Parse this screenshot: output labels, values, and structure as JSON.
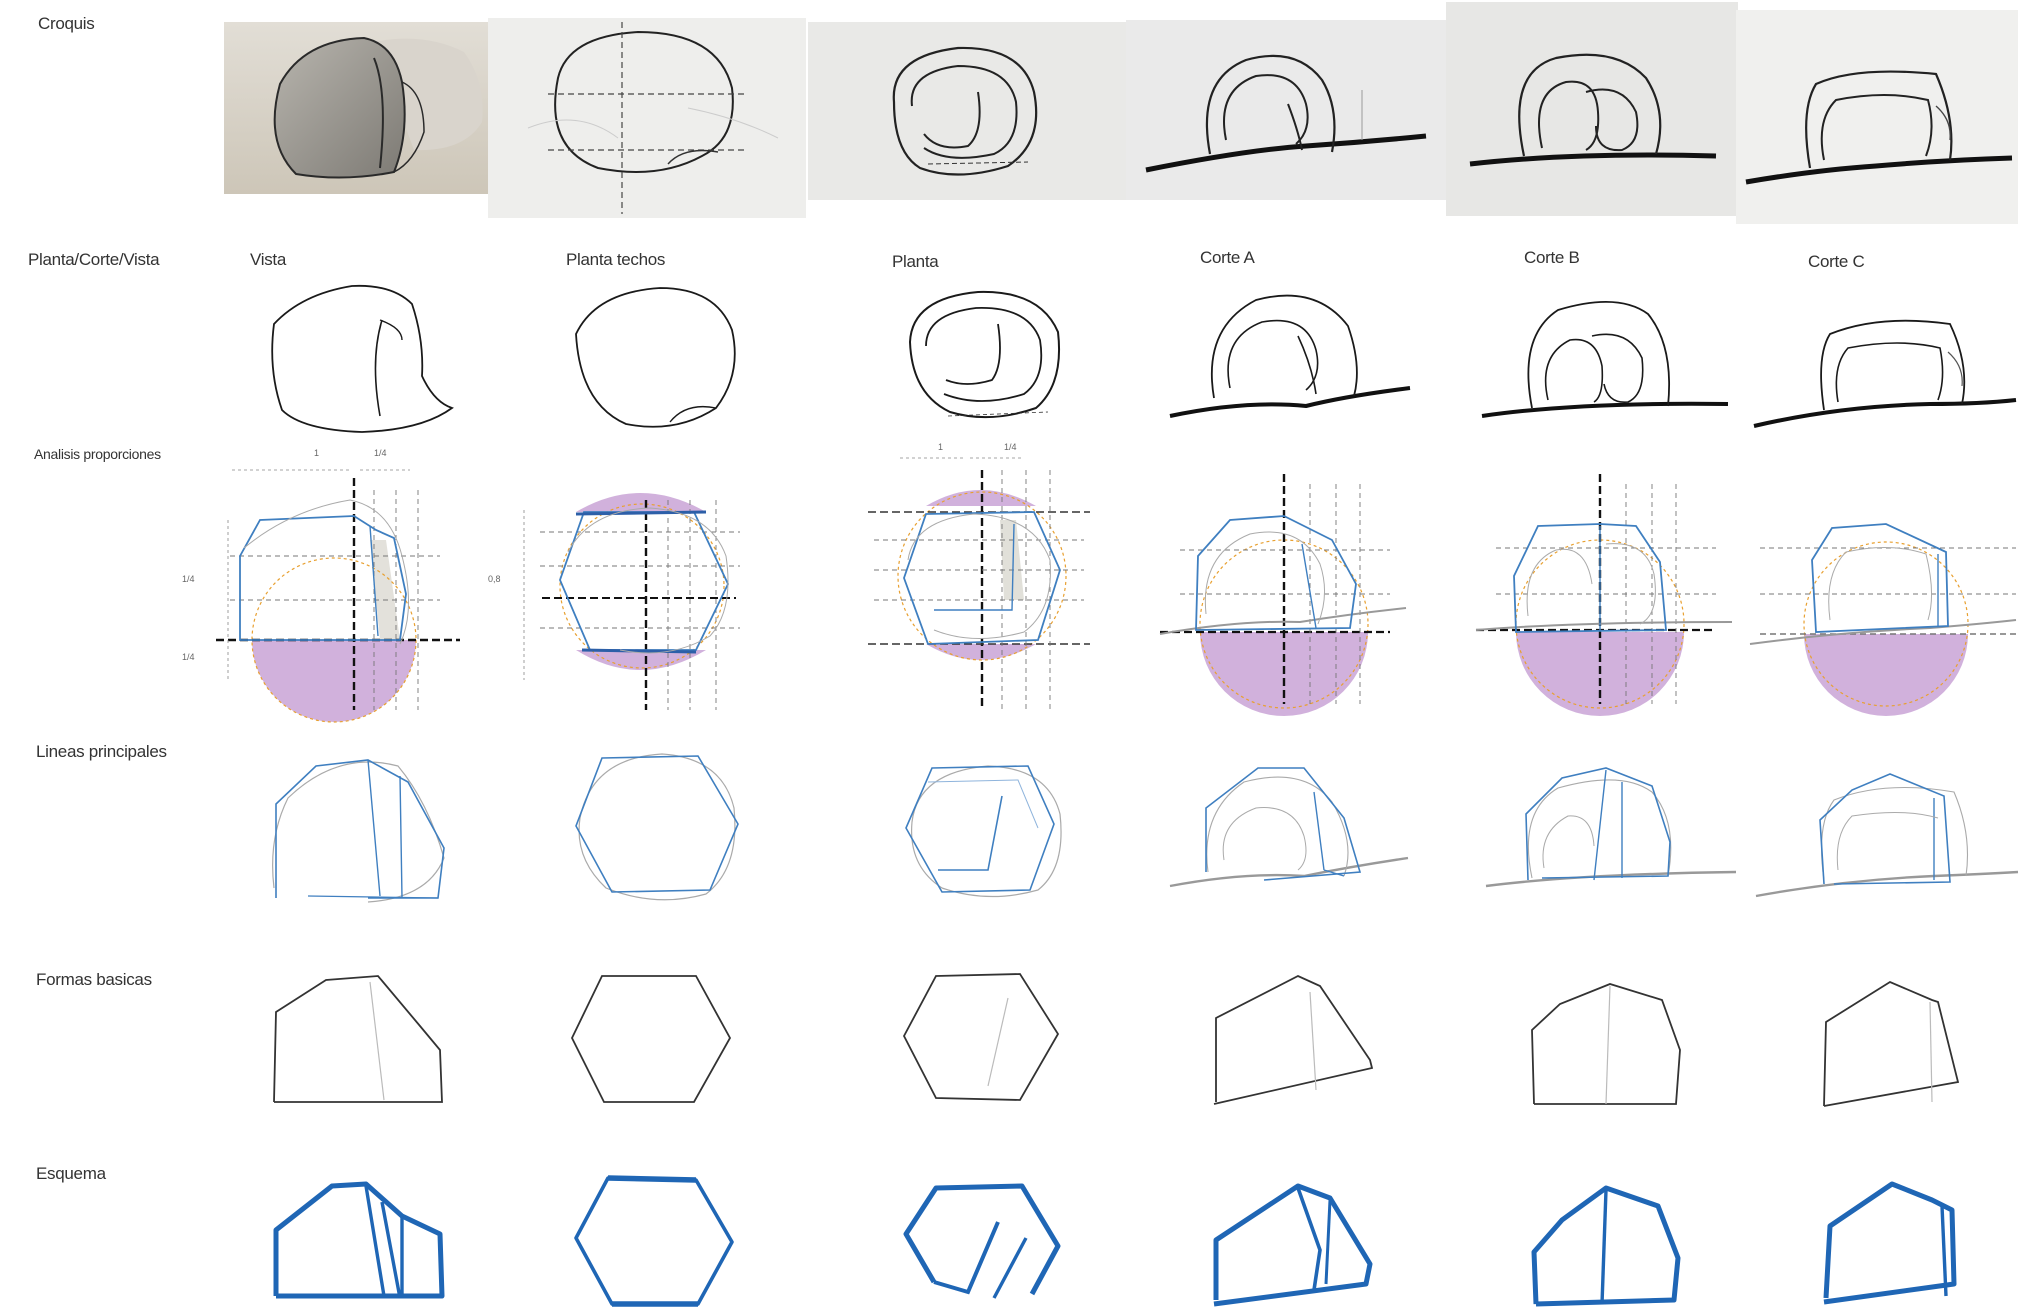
{
  "rows": {
    "croquis": "Croquis",
    "planta_corte_vista": "Planta/Corte/Vista",
    "analisis": "Analisis proporciones",
    "lineas": "Lineas principales",
    "formas": "Formas basicas",
    "esquema": "Esquema"
  },
  "columns": [
    "Vista",
    "Planta techos",
    "Planta",
    "Corte A",
    "Corte B",
    "Corte C"
  ],
  "ticks": {
    "dim_1": "1",
    "dim_14": "1/4",
    "side_a": "1/4",
    "side_b": "1/4",
    "side_c": "0,8"
  },
  "colors": {
    "ink": "#1a1a1a",
    "blue_line": "#3f7fc0",
    "blue_scheme": "#1f66b5",
    "purple_fill": "#c9a3d6",
    "orange_dash": "#e8a030",
    "grey_guide": "#aaaaaa",
    "photo_bg": "#eceae6",
    "rock_grey": "#9a9892"
  }
}
